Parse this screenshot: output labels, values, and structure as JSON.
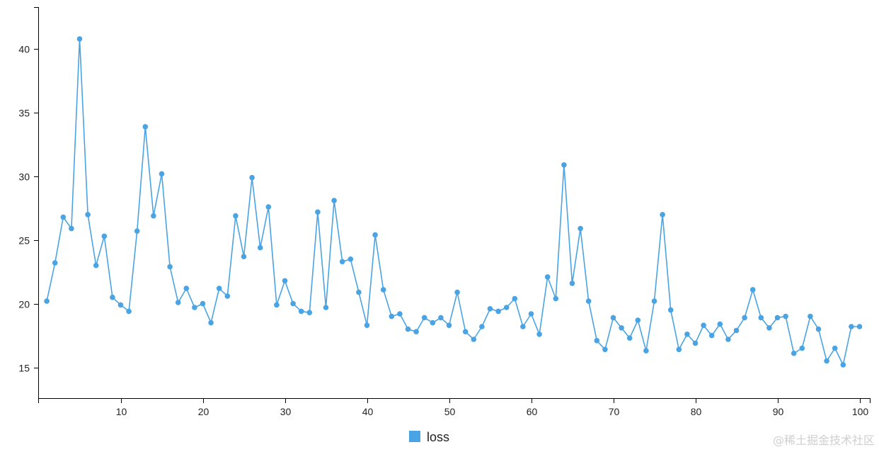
{
  "chart_data": {
    "type": "line",
    "title": "",
    "xlabel": "",
    "ylabel": "",
    "xlim": [
      0,
      101
    ],
    "ylim": [
      12.5,
      43.5
    ],
    "x_ticks": [
      10,
      20,
      30,
      40,
      50,
      60,
      70,
      80,
      90,
      100
    ],
    "y_ticks": [
      15,
      20,
      25,
      30,
      35,
      40
    ],
    "grid": false,
    "legend_position": "bottom-center",
    "series": [
      {
        "name": "loss",
        "color": "#4aa3e3",
        "x": [
          1,
          2,
          3,
          4,
          5,
          6,
          7,
          8,
          9,
          10,
          11,
          12,
          13,
          14,
          15,
          16,
          17,
          18,
          19,
          20,
          21,
          22,
          23,
          24,
          25,
          26,
          27,
          28,
          29,
          30,
          31,
          32,
          33,
          34,
          35,
          36,
          37,
          38,
          39,
          40,
          41,
          42,
          43,
          44,
          45,
          46,
          47,
          48,
          49,
          50,
          51,
          52,
          53,
          54,
          55,
          56,
          57,
          58,
          59,
          60,
          61,
          62,
          63,
          64,
          65,
          66,
          67,
          68,
          69,
          70,
          71,
          72,
          73,
          74,
          75,
          76,
          77,
          78,
          79,
          80,
          81,
          82,
          83,
          84,
          85,
          86,
          87,
          88,
          89,
          90,
          91,
          92,
          93,
          94,
          95,
          96,
          97,
          98,
          99,
          100
        ],
        "values": [
          20.2,
          23.2,
          26.8,
          25.9,
          40.8,
          27.0,
          23.0,
          25.3,
          20.5,
          19.9,
          19.4,
          25.7,
          33.9,
          26.9,
          30.2,
          22.9,
          20.1,
          21.2,
          19.7,
          20.0,
          18.5,
          21.2,
          20.6,
          26.9,
          23.7,
          29.9,
          24.4,
          27.6,
          19.9,
          21.8,
          20.0,
          19.4,
          19.3,
          27.2,
          19.7,
          28.1,
          23.3,
          23.5,
          20.9,
          18.3,
          25.4,
          21.1,
          19.0,
          19.2,
          18.0,
          17.8,
          18.9,
          18.5,
          18.9,
          18.3,
          20.9,
          17.8,
          17.2,
          18.2,
          19.6,
          19.4,
          19.7,
          20.4,
          18.2,
          19.2,
          17.6,
          22.1,
          20.4,
          30.9,
          21.6,
          25.9,
          20.2,
          17.1,
          16.4,
          18.9,
          18.1,
          17.3,
          18.7,
          16.3,
          20.2,
          27.0,
          19.5,
          16.4,
          17.6,
          16.9,
          18.3,
          17.5,
          18.4,
          17.2,
          17.9,
          18.9,
          21.1,
          18.9,
          18.1,
          18.9,
          19.0,
          16.1,
          16.5,
          19.0,
          18.0,
          15.5,
          16.5,
          15.2,
          18.2,
          18.2
        ]
      }
    ]
  },
  "watermark": "@稀土掘金技术社区"
}
